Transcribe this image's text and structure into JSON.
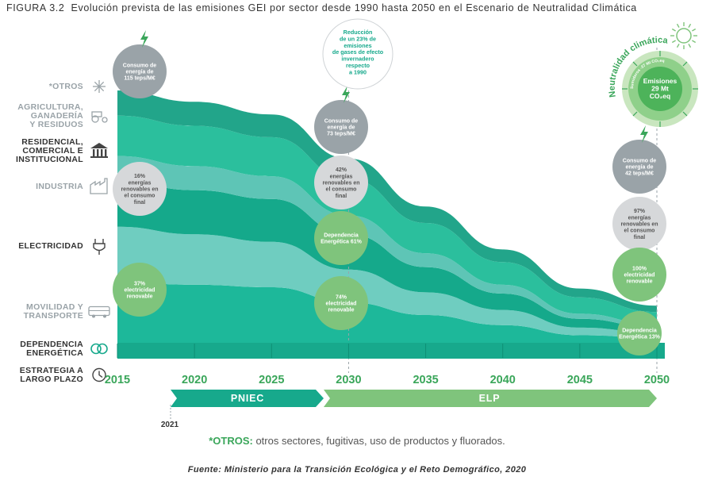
{
  "figure": {
    "number": "FIGURA 3.2",
    "title": "Evolución prevista de las emisiones GEI por sector desde 1990 hasta 2050 en el Escenario de Neutralidad Climática"
  },
  "sectors": [
    {
      "key": "otros",
      "label": "*OTROS",
      "icon": "snowflake-icon",
      "color": "#9aa3a8"
    },
    {
      "key": "agri",
      "label": "AGRICULTURA, GANADERÍA Y RESIDUOS",
      "icon": "tractor-icon",
      "color": "#9aa3a8"
    },
    {
      "key": "resid",
      "label": "RESIDENCIAL, COMERCIAL E INSTITUCIONAL",
      "icon": "building-icon",
      "color": "#333333"
    },
    {
      "key": "industria",
      "label": "INDUSTRIA",
      "icon": "factory-icon",
      "color": "#9aa3a8"
    },
    {
      "key": "elec",
      "label": "ELECTRICIDAD",
      "icon": "plug-icon",
      "color": "#333333"
    },
    {
      "key": "movilidad",
      "label": "MOVILIDAD Y TRANSPORTE",
      "icon": "bus-icon",
      "color": "#9aa3a8"
    },
    {
      "key": "dependencia",
      "label": "DEPENDENCIA ENERGÉTICA",
      "icon": "rings-icon",
      "color": "#333333"
    },
    {
      "key": "estrategia",
      "label": "ESTRATEGIA A LARGO PLAZO",
      "icon": "clock-icon",
      "color": "#333333"
    }
  ],
  "chart_data": {
    "type": "area",
    "x": [
      2015,
      2020,
      2025,
      2030,
      2035,
      2040,
      2045,
      2050
    ],
    "tick_labels": [
      "2015",
      "2020",
      "2025",
      "2030",
      "2035",
      "2040",
      "2045",
      "2050"
    ],
    "series": [
      {
        "key": "movilidad",
        "color": "#1db89a",
        "values": [
          24,
          23,
          22,
          16,
          11,
          7,
          3,
          2
        ]
      },
      {
        "key": "elec",
        "color": "#6fcdc0",
        "values": [
          22,
          20,
          18,
          13,
          9,
          6,
          3,
          2
        ]
      },
      {
        "key": "industria",
        "color": "#15a98b",
        "values": [
          18,
          17.5,
          17,
          14,
          10,
          6.5,
          3.5,
          2
        ]
      },
      {
        "key": "resid",
        "color": "#5ec5b6",
        "values": [
          10,
          9.5,
          9,
          7.5,
          5.5,
          3.5,
          2,
          1.2
        ]
      },
      {
        "key": "agri",
        "color": "#2bbf9d",
        "values": [
          16,
          16,
          15.5,
          14.5,
          12,
          9,
          6.5,
          5
        ]
      },
      {
        "key": "otros",
        "color": "#22a58a",
        "values": [
          10,
          9.5,
          9,
          8,
          6.5,
          5,
          3.5,
          2.5
        ]
      }
    ],
    "ylim": [
      0,
      100
    ],
    "grid": false
  },
  "bubbles": [
    {
      "year": 2015,
      "row": "otros",
      "lines": [
        "Consumo de",
        "energía de",
        "115 teps/M€"
      ],
      "fill": "#9aa3a8",
      "text": "#ffffff",
      "bolt": true
    },
    {
      "year": 2015,
      "row": "industria",
      "lines": [
        "16%",
        "energías",
        "renovables en",
        "el consumo",
        "final"
      ],
      "fill": "#d6d8da",
      "text": "#555555",
      "bolt": false
    },
    {
      "year": 2015,
      "row": "movilidad",
      "lines": [
        "37%",
        "electricidad",
        "renovable"
      ],
      "fill": "#7fc47c",
      "text": "#ffffff",
      "bolt": false
    },
    {
      "year": 2030,
      "row": "resid",
      "lines": [
        "Consumo de",
        "energía de",
        "73 teps/M€"
      ],
      "fill": "#9aa3a8",
      "text": "#ffffff",
      "bolt": true
    },
    {
      "year": 2030,
      "row": "industria",
      "lines": [
        "42%",
        "energías",
        "renovables en",
        "el consumo",
        "final"
      ],
      "fill": "#d6d8da",
      "text": "#555555",
      "bolt": false
    },
    {
      "year": 2030,
      "row": "elec",
      "lines": [
        "Dependencia",
        "Energética 61%"
      ],
      "fill": "#7fc47c",
      "text": "#ffffff",
      "bolt": false
    },
    {
      "year": 2030,
      "row": "movilidad",
      "lines": [
        "74%",
        "electricidad",
        "renovable"
      ],
      "fill": "#7fc47c",
      "text": "#ffffff",
      "bolt": false
    },
    {
      "year": 2050,
      "row": "resid",
      "lines": [
        "Consumo de",
        "energía de",
        "42 teps/M€"
      ],
      "fill": "#9aa3a8",
      "text": "#ffffff",
      "bolt": true
    },
    {
      "year": 2050,
      "row": "industria",
      "lines": [
        "97%",
        "energías",
        "renovables en",
        "el consumo",
        "final"
      ],
      "fill": "#d6d8da",
      "text": "#555555",
      "bolt": false
    },
    {
      "year": 2050,
      "row": "elec",
      "lines": [
        "100%",
        "electricidad",
        "renovable"
      ],
      "fill": "#7fc47c",
      "text": "#ffffff",
      "bolt": false
    },
    {
      "year": 2050,
      "row": "dependencia",
      "lines": [
        "Dependencia",
        "Energética 13%"
      ],
      "fill": "#7fc47c",
      "text": "#ffffff",
      "bolt": false
    }
  ],
  "reduction_note": [
    "Reducción",
    "de un 23% de",
    "emisiones",
    "de gases de efecto",
    "invernadero",
    "respecto",
    "a 1990"
  ],
  "neutrality": {
    "arc_text": "Neutralidad climática",
    "inner_arc_text": "Sumideros -37 Mt CO₂eq",
    "center_lines": [
      "Emisiones",
      "29 Mt",
      "CO₂eq"
    ]
  },
  "timeline": {
    "pniec": "PNIEC",
    "elp": "ELP",
    "start_year": "2021"
  },
  "footnote": {
    "label": "*OTROS:",
    "text": " otros sectores, fugitivas, uso de productos y fluorados."
  },
  "source": "Fuente:  Ministerio para la Transición Ecológica y el Reto Demográfico, 2020",
  "colors": {
    "teal_dark": "#17a98c",
    "green_light": "#7fc47c",
    "grey": "#9aa3a8",
    "label_dark": "#333333"
  }
}
